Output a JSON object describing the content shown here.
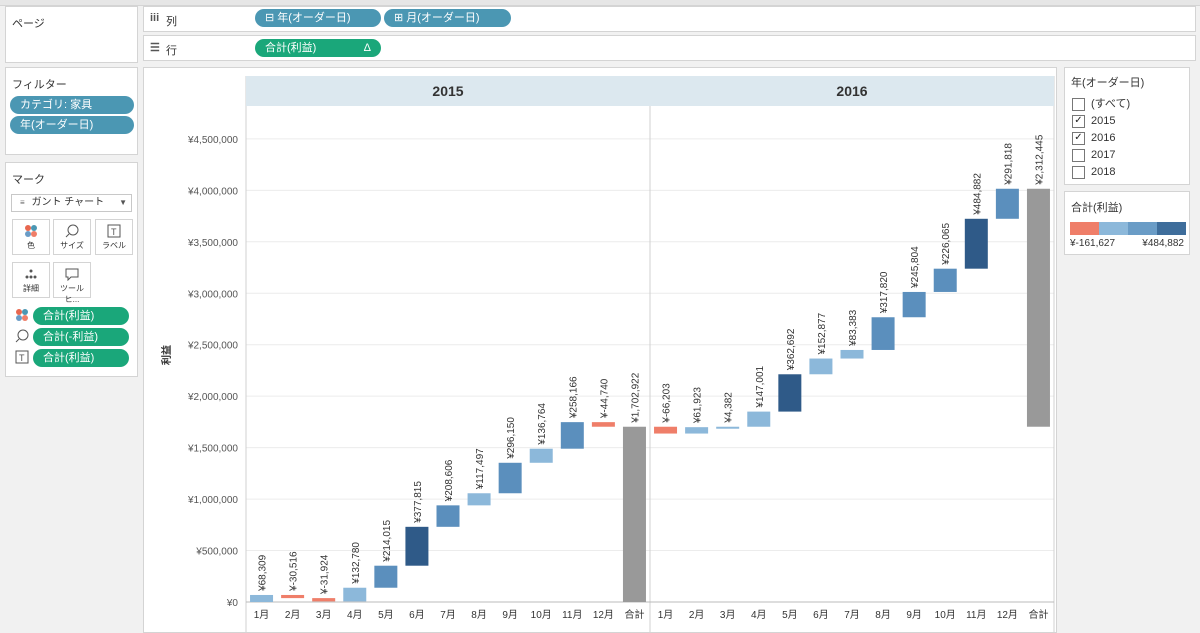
{
  "shelves": {
    "pages_title": "ページ",
    "columns_label": "列",
    "rows_label": "行",
    "columns_pills": [
      "⊟ 年(オーダー日)",
      "⊞ 月(オーダー日)"
    ],
    "rows_pill": "合計(利益)",
    "rows_pill_delta": "Δ"
  },
  "filters": {
    "title": "フィルター",
    "items": [
      "カテゴリ: 家具",
      "年(オーダー日)"
    ]
  },
  "marks": {
    "title": "マーク",
    "mark_type": "ガント チャート",
    "buttons": [
      {
        "label": "色",
        "icon": "color-icon"
      },
      {
        "label": "サイズ",
        "icon": "size-icon"
      },
      {
        "label": "ラベル",
        "icon": "label-icon"
      },
      {
        "label": "詳細",
        "icon": "detail-icon"
      },
      {
        "label": "ツールヒ...",
        "icon": "tooltip-icon"
      }
    ],
    "fields": [
      {
        "icon": "color-icon",
        "label": "合計(利益)"
      },
      {
        "icon": "size-icon",
        "label": "合計(-利益)"
      },
      {
        "icon": "label-icon",
        "label": "合計(利益)"
      }
    ]
  },
  "year_filter": {
    "title": "年(オーダー日)",
    "options": [
      {
        "label": "(すべて)",
        "checked": false
      },
      {
        "label": "2015",
        "checked": true
      },
      {
        "label": "2016",
        "checked": true
      },
      {
        "label": "2017",
        "checked": false
      },
      {
        "label": "2018",
        "checked": false
      }
    ]
  },
  "legend": {
    "title": "合計(利益)",
    "min_label": "¥-161,627",
    "max_label": "¥484,882",
    "colors": [
      "#ef7e69",
      "#8cb8da",
      "#6a9cc6",
      "#3e6d9b"
    ]
  },
  "chart_data": {
    "type": "bar",
    "subtype": "waterfall-gantt",
    "ylabel": "利益",
    "ylim": [
      0,
      4800000
    ],
    "y_ticks": [
      0,
      500000,
      1000000,
      1500000,
      2000000,
      2500000,
      3000000,
      3500000,
      4000000,
      4500000
    ],
    "y_tick_labels": [
      "¥0",
      "¥500,000",
      "¥1,000,000",
      "¥1,500,000",
      "¥2,000,000",
      "¥2,500,000",
      "¥3,000,000",
      "¥3,500,000",
      "¥4,000,000",
      "¥4,500,000"
    ],
    "grid": true,
    "panels": [
      {
        "header": "2015",
        "categories": [
          "1月",
          "2月",
          "3月",
          "4月",
          "5月",
          "6月",
          "7月",
          "8月",
          "9月",
          "10月",
          "11月",
          "12月",
          "合計"
        ],
        "values": [
          68309,
          -30516,
          -31924,
          132780,
          214015,
          377815,
          208606,
          117497,
          296150,
          136764,
          258166,
          -44740,
          1702922
        ],
        "labels": [
          "¥68,309",
          "¥-30,516",
          "¥-31,924",
          "¥132,780",
          "¥214,015",
          "¥377,815",
          "¥208,606",
          "¥117,497",
          "¥296,150",
          "¥136,764",
          "¥258,166",
          "¥-44,740",
          "¥1,702,922"
        ]
      },
      {
        "header": "2016",
        "categories": [
          "1月",
          "2月",
          "3月",
          "4月",
          "5月",
          "6月",
          "7月",
          "8月",
          "9月",
          "10月",
          "11月",
          "12月",
          "合計"
        ],
        "values": [
          -66203,
          61923,
          4382,
          147001,
          362692,
          152877,
          83383,
          317820,
          245804,
          226065,
          484882,
          291818,
          2312445
        ],
        "labels": [
          "¥-66,203",
          "¥61,923",
          "¥4,382",
          "¥147,001",
          "¥362,692",
          "¥152,877",
          "¥83,383",
          "¥317,820",
          "¥245,804",
          "¥226,065",
          "¥484,882",
          "¥291,818",
          "¥2,312,445"
        ]
      }
    ],
    "colors": {
      "negative": "#ef7e69",
      "light": "#8cb8da",
      "mid": "#5b8fbd",
      "dark": "#2f5a88",
      "total": "#999999"
    },
    "legend": "right"
  }
}
